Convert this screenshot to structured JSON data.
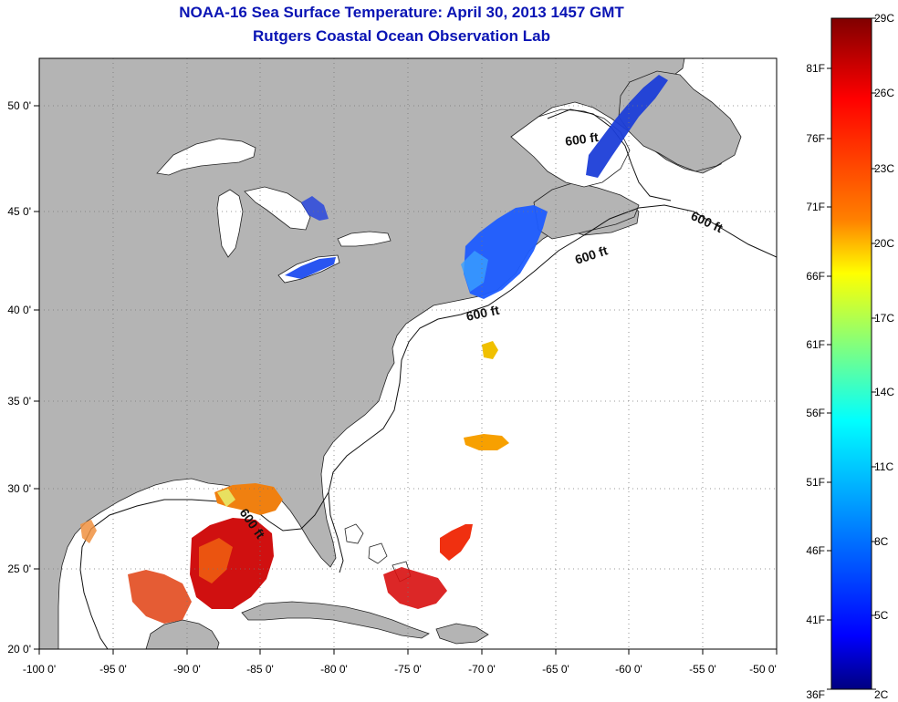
{
  "header": {
    "title": "NOAA-16 Sea Surface Temperature:  April 30, 2013 1457 GMT",
    "subtitle": "Rutgers Coastal Ocean Observation Lab"
  },
  "map": {
    "lon_range": [
      -100,
      -50
    ],
    "lat_range": [
      20,
      52.5
    ],
    "lon_ticks": [
      {
        "value": -100,
        "label": "-100 0'"
      },
      {
        "value": -95,
        "label": "-95 0'"
      },
      {
        "value": -90,
        "label": "-90 0'"
      },
      {
        "value": -85,
        "label": "-85 0'"
      },
      {
        "value": -80,
        "label": "-80 0'"
      },
      {
        "value": -75,
        "label": "-75 0'"
      },
      {
        "value": -70,
        "label": "-70 0'"
      },
      {
        "value": -65,
        "label": "-65 0'"
      },
      {
        "value": -60,
        "label": "-60 0'"
      },
      {
        "value": -55,
        "label": "-55 0'"
      },
      {
        "value": -50,
        "label": "-50 0'"
      }
    ],
    "lat_ticks": [
      {
        "value": 20,
        "label": "20 0'"
      },
      {
        "value": 25,
        "label": "25 0'"
      },
      {
        "value": 30,
        "label": "30 0'"
      },
      {
        "value": 35,
        "label": "35 0'"
      },
      {
        "value": 40,
        "label": "40 0'"
      },
      {
        "value": 45,
        "label": "45 0'"
      },
      {
        "value": 50,
        "label": "50 0'"
      }
    ],
    "grid": "dotted",
    "land_color": "#b4b4b4",
    "ocean_color": "#ffffff",
    "isobath_labels": [
      "600 ft",
      "600 ft",
      "600 ft",
      "600 ft",
      "600 ft"
    ]
  },
  "colorbar": {
    "celsius_labels": [
      "29C",
      "26C",
      "23C",
      "20C",
      "17C",
      "14C",
      "11C",
      "8C",
      "5C",
      "2C"
    ],
    "fahrenheit_labels": [
      "81F",
      "76F",
      "71F",
      "66F",
      "61F",
      "56F",
      "51F",
      "46F",
      "41F",
      "36F"
    ],
    "colors": [
      "#800000",
      "#ff0000",
      "#ff8000",
      "#ffff00",
      "#00ffff",
      "#0000ff",
      "#000080"
    ]
  }
}
